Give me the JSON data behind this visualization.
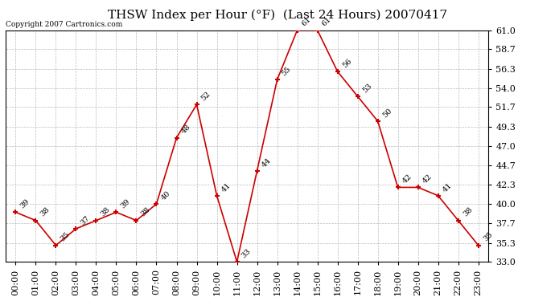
{
  "title": "THSW Index per Hour (°F)  (Last 24 Hours) 20070417",
  "copyright": "Copyright 2007 Cartronics.com",
  "hours": [
    "00:00",
    "01:00",
    "02:00",
    "03:00",
    "04:00",
    "05:00",
    "06:00",
    "07:00",
    "08:00",
    "09:00",
    "10:00",
    "11:00",
    "12:00",
    "13:00",
    "14:00",
    "15:00",
    "16:00",
    "17:00",
    "18:00",
    "19:00",
    "20:00",
    "21:00",
    "22:00",
    "23:00"
  ],
  "values": [
    39,
    38,
    35,
    37,
    38,
    39,
    38,
    40,
    48,
    52,
    41,
    33,
    44,
    55,
    61,
    61,
    56,
    53,
    50,
    42,
    42,
    41,
    38,
    35
  ],
  "ylim": [
    33.0,
    61.0
  ],
  "yticks": [
    33.0,
    35.3,
    37.7,
    40.0,
    42.3,
    44.7,
    47.0,
    49.3,
    51.7,
    54.0,
    56.3,
    58.7,
    61.0
  ],
  "line_color": "#cc0000",
  "bg_color": "#ffffff",
  "grid_color": "#bbbbbb",
  "title_fontsize": 11,
  "label_fontsize": 7,
  "tick_fontsize": 8,
  "copyright_fontsize": 6.5
}
